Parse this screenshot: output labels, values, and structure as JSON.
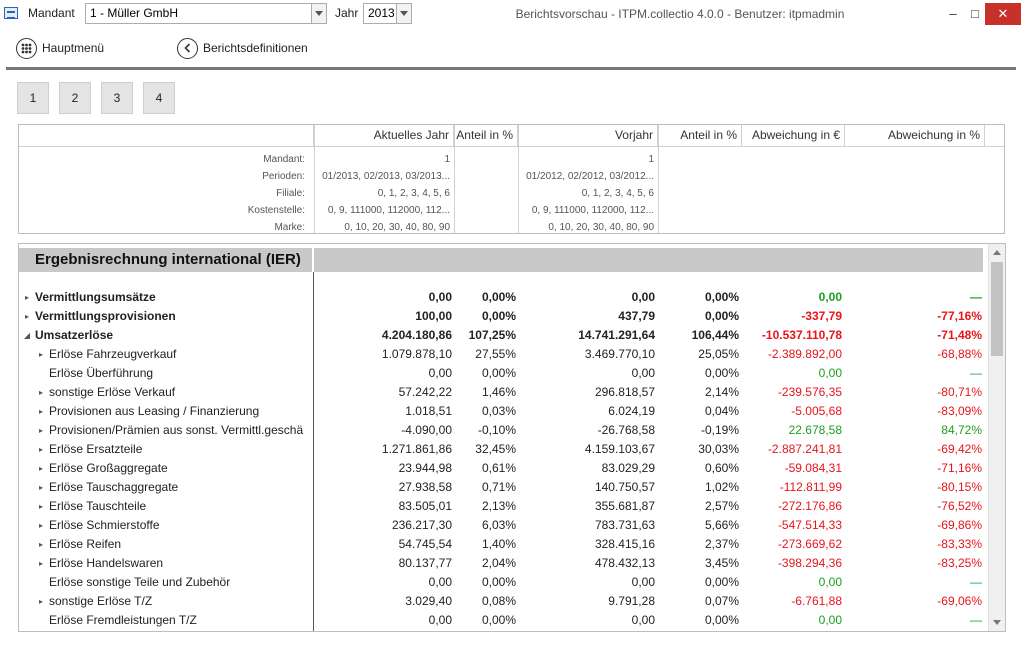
{
  "titlebar": {
    "mandant_label": "Mandant",
    "mandant_value": "1 - Müller GmbH",
    "jahr_label": "Jahr",
    "jahr_value": "2013",
    "window_title": "Berichtsvorschau - ITPM.collectio 4.0.0 - Benutzer: itpmadmin",
    "minimize": "–",
    "maximize": "□",
    "close": "✕"
  },
  "toolbar": {
    "hauptmenu_label": "Hauptmenü",
    "berichtsdefinitionen_label": "Berichtsdefinitionen"
  },
  "pages": [
    "1",
    "2",
    "3",
    "4"
  ],
  "header": {
    "columns": [
      "Aktuelles Jahr",
      "Anteil in %",
      "Vorjahr",
      "Anteil in %",
      "Abweichung in €",
      "Abweichung in %"
    ],
    "meta": [
      {
        "key": "Mandant:",
        "v1": "1",
        "v2": "1"
      },
      {
        "key": "Perioden:",
        "v1": "01/2013, 02/2013, 03/2013...",
        "v2": "01/2012, 02/2012, 03/2012..."
      },
      {
        "key": "Filiale:",
        "v1": "0, 1, 2, 3, 4, 5, 6",
        "v2": "0, 1, 2, 3, 4, 5, 6"
      },
      {
        "key": "Kostenstelle:",
        "v1": "0, 9, 111000, 112000, 112...",
        "v2": "0, 9, 111000, 112000, 112..."
      },
      {
        "key": "Marke:",
        "v1": "0, 10, 20, 30, 40, 80, 90",
        "v2": "0, 10, 20, 30, 40, 80, 90"
      }
    ]
  },
  "report": {
    "title": "Ergebnisrechnung international (IER)",
    "colors": {
      "negative": "#e8141b",
      "positive": "#1e9e1e"
    },
    "rows": [
      {
        "name": "Vermittlungsumsätze",
        "level": 0,
        "expander": "right",
        "bold": true,
        "v": [
          "0,00",
          "0,00%",
          "0,00",
          "0,00%",
          "0,00",
          "—"
        ],
        "c5": "green",
        "c6": "green"
      },
      {
        "name": "Vermittlungsprovisionen",
        "level": 0,
        "expander": "right",
        "bold": true,
        "v": [
          "100,00",
          "0,00%",
          "437,79",
          "0,00%",
          "-337,79",
          "-77,16%"
        ],
        "c5": "red",
        "c6": "red"
      },
      {
        "name": "Umsatzerlöse",
        "level": 0,
        "expander": "down",
        "bold": true,
        "v": [
          "4.204.180,86",
          "107,25%",
          "14.741.291,64",
          "106,44%",
          "-10.537.110,78",
          "-71,48%"
        ],
        "c5": "red",
        "c6": "red"
      },
      {
        "name": "Erlöse Fahrzeugverkauf",
        "level": 1,
        "expander": "right",
        "bold": false,
        "v": [
          "1.079.878,10",
          "27,55%",
          "3.469.770,10",
          "25,05%",
          "-2.389.892,00",
          "-68,88%"
        ],
        "c5": "red",
        "c6": "red"
      },
      {
        "name": "Erlöse Überführung",
        "level": 1,
        "expander": "none",
        "bold": false,
        "v": [
          "0,00",
          "0,00%",
          "0,00",
          "0,00%",
          "0,00",
          "—"
        ],
        "c5": "green",
        "c6": "green"
      },
      {
        "name": "sonstige Erlöse Verkauf",
        "level": 1,
        "expander": "right",
        "bold": false,
        "v": [
          "57.242,22",
          "1,46%",
          "296.818,57",
          "2,14%",
          "-239.576,35",
          "-80,71%"
        ],
        "c5": "red",
        "c6": "red"
      },
      {
        "name": "Provisionen aus Leasing / Finanzierung",
        "level": 1,
        "expander": "right",
        "bold": false,
        "v": [
          "1.018,51",
          "0,03%",
          "6.024,19",
          "0,04%",
          "-5.005,68",
          "-83,09%"
        ],
        "c5": "red",
        "c6": "red"
      },
      {
        "name": "Provisionen/Prämien aus sonst. Vermittl.geschä",
        "level": 1,
        "expander": "right",
        "bold": false,
        "v": [
          "-4.090,00",
          "-0,10%",
          "-26.768,58",
          "-0,19%",
          "22.678,58",
          "84,72%"
        ],
        "c5": "green",
        "c6": "green"
      },
      {
        "name": "Erlöse Ersatzteile",
        "level": 1,
        "expander": "right",
        "bold": false,
        "v": [
          "1.271.861,86",
          "32,45%",
          "4.159.103,67",
          "30,03%",
          "-2.887.241,81",
          "-69,42%"
        ],
        "c5": "red",
        "c6": "red"
      },
      {
        "name": "Erlöse Großaggregate",
        "level": 1,
        "expander": "right",
        "bold": false,
        "v": [
          "23.944,98",
          "0,61%",
          "83.029,29",
          "0,60%",
          "-59.084,31",
          "-71,16%"
        ],
        "c5": "red",
        "c6": "red"
      },
      {
        "name": "Erlöse Tauschaggregate",
        "level": 1,
        "expander": "right",
        "bold": false,
        "v": [
          "27.938,58",
          "0,71%",
          "140.750,57",
          "1,02%",
          "-112.811,99",
          "-80,15%"
        ],
        "c5": "red",
        "c6": "red"
      },
      {
        "name": "Erlöse Tauschteile",
        "level": 1,
        "expander": "right",
        "bold": false,
        "v": [
          "83.505,01",
          "2,13%",
          "355.681,87",
          "2,57%",
          "-272.176,86",
          "-76,52%"
        ],
        "c5": "red",
        "c6": "red"
      },
      {
        "name": "Erlöse Schmierstoffe",
        "level": 1,
        "expander": "right",
        "bold": false,
        "v": [
          "236.217,30",
          "6,03%",
          "783.731,63",
          "5,66%",
          "-547.514,33",
          "-69,86%"
        ],
        "c5": "red",
        "c6": "red"
      },
      {
        "name": "Erlöse Reifen",
        "level": 1,
        "expander": "right",
        "bold": false,
        "v": [
          "54.745,54",
          "1,40%",
          "328.415,16",
          "2,37%",
          "-273.669,62",
          "-83,33%"
        ],
        "c5": "red",
        "c6": "red"
      },
      {
        "name": "Erlöse Handelswaren",
        "level": 1,
        "expander": "right",
        "bold": false,
        "v": [
          "80.137,77",
          "2,04%",
          "478.432,13",
          "3,45%",
          "-398.294,36",
          "-83,25%"
        ],
        "c5": "red",
        "c6": "red"
      },
      {
        "name": "Erlöse sonstige Teile und Zubehör",
        "level": 1,
        "expander": "none",
        "bold": false,
        "v": [
          "0,00",
          "0,00%",
          "0,00",
          "0,00%",
          "0,00",
          "—"
        ],
        "c5": "green",
        "c6": "green"
      },
      {
        "name": "sonstige Erlöse T/Z",
        "level": 1,
        "expander": "right",
        "bold": false,
        "v": [
          "3.029,40",
          "0,08%",
          "9.791,28",
          "0,07%",
          "-6.761,88",
          "-69,06%"
        ],
        "c5": "red",
        "c6": "red"
      },
      {
        "name": "Erlöse Fremdleistungen T/Z",
        "level": 1,
        "expander": "none",
        "bold": false,
        "v": [
          "0,00",
          "0,00%",
          "0,00",
          "0,00%",
          "0,00",
          "—"
        ],
        "c5": "green",
        "c6": "green"
      }
    ]
  }
}
